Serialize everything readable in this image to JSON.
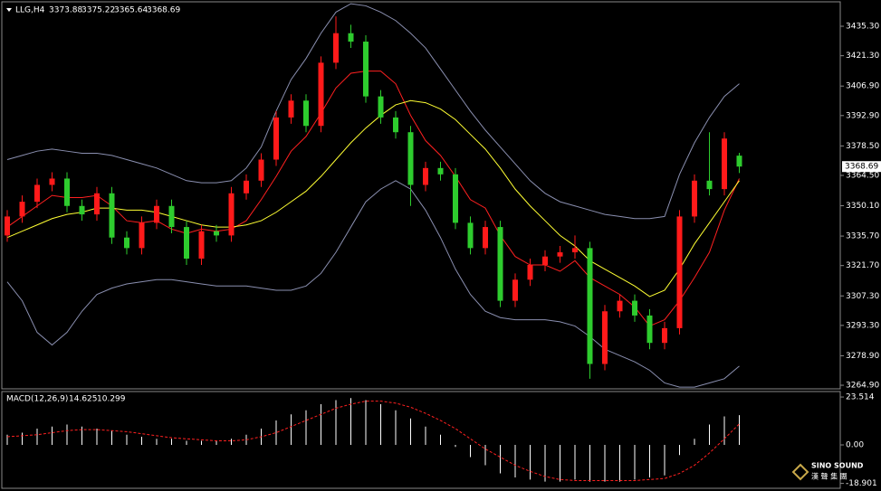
{
  "chart_data": [
    {
      "type": "candlestick",
      "symbol": "LLG,H4",
      "up_color": "#ff1a1a",
      "down_color": "#2ecc2e",
      "open": [
        3336,
        3345,
        3352,
        3360,
        3363,
        3350,
        3346,
        3356,
        3335,
        3330,
        3342,
        3350,
        3340,
        3325,
        3338,
        3336,
        3356,
        3362,
        3372,
        3392,
        3400,
        3388,
        3418,
        3432,
        3428,
        3402,
        3392,
        3385,
        3360,
        3368,
        3365,
        3342,
        3330,
        3340,
        3305,
        3315,
        3322,
        3326,
        3328,
        3330,
        3275,
        3300,
        3305,
        3298,
        3285,
        3292,
        3345,
        3362,
        3358,
        3373.88
      ],
      "high": [
        3348,
        3355,
        3363,
        3366,
        3366,
        3353,
        3359,
        3359,
        3338,
        3345,
        3353,
        3353,
        3343,
        3341,
        3341,
        3359,
        3365,
        3375,
        3395,
        3403,
        3403,
        3421,
        3440,
        3436,
        3431,
        3405,
        3395,
        3388,
        3371,
        3371,
        3368,
        3345,
        3343,
        3343,
        3318,
        3325,
        3329,
        3331,
        3336,
        3333,
        3303,
        3308,
        3308,
        3301,
        3295,
        3348,
        3365,
        3385,
        3385,
        3375.22
      ],
      "low": [
        3333,
        3342,
        3349,
        3357,
        3347,
        3343,
        3343,
        3332,
        3327,
        3327,
        3339,
        3337,
        3322,
        3322,
        3333,
        3333,
        3353,
        3359,
        3369,
        3389,
        3385,
        3385,
        3415,
        3425,
        3399,
        3389,
        3382,
        3350,
        3357,
        3362,
        3339,
        3327,
        3327,
        3302,
        3302,
        3312,
        3319,
        3323,
        3325,
        3268,
        3272,
        3297,
        3295,
        3282,
        3282,
        3289,
        3342,
        3355,
        3355,
        3365.64
      ],
      "close": [
        3345,
        3352,
        3360,
        3363,
        3350,
        3346,
        3356,
        3335,
        3330,
        3342,
        3350,
        3340,
        3325,
        3338,
        3336,
        3356,
        3362,
        3372,
        3392,
        3400,
        3388,
        3418,
        3432,
        3428,
        3402,
        3392,
        3385,
        3360,
        3368,
        3365,
        3342,
        3330,
        3340,
        3305,
        3315,
        3322,
        3326,
        3328,
        3330,
        3275,
        3300,
        3305,
        3298,
        3285,
        3292,
        3345,
        3362,
        3358,
        3382,
        3368.69
      ],
      "lines": [
        {
          "color": "#ff2020",
          "dash": false,
          "values": [
            3340,
            3345,
            3350,
            3355,
            3354,
            3354,
            3355,
            3350,
            3343,
            3342,
            3343,
            3339,
            3337,
            3339,
            3338,
            3339,
            3343,
            3353,
            3364,
            3376,
            3383,
            3394,
            3406,
            3413,
            3414,
            3414,
            3408,
            3393,
            3381,
            3374,
            3364,
            3353,
            3349,
            3336,
            3326,
            3322,
            3322,
            3319,
            3324,
            3316,
            3312,
            3308,
            3302,
            3293,
            3296,
            3305,
            3316,
            3328,
            3348,
            3363
          ]
        },
        {
          "color": "#ffff33",
          "dash": false,
          "values": [
            3335,
            3338,
            3341,
            3344,
            3346,
            3347,
            3349,
            3349,
            3348,
            3348,
            3347,
            3345,
            3343,
            3341,
            3340,
            3340,
            3341,
            3343,
            3347,
            3352,
            3357,
            3364,
            3372,
            3380,
            3387,
            3393,
            3398,
            3400,
            3399,
            3396,
            3391,
            3384,
            3377,
            3368,
            3358,
            3350,
            3343,
            3336,
            3331,
            3324,
            3320,
            3316,
            3312,
            3307,
            3310,
            3320,
            3332,
            3342,
            3352,
            3362
          ]
        },
        {
          "color": "#8a8fb0",
          "dash": false,
          "values": [
            3372,
            3374,
            3376,
            3377,
            3376,
            3375,
            3375,
            3374,
            3372,
            3370,
            3368,
            3365,
            3362,
            3361,
            3361,
            3362,
            3368,
            3378,
            3395,
            3410,
            3420,
            3432,
            3442,
            3446,
            3445,
            3442,
            3438,
            3432,
            3425,
            3415,
            3405,
            3395,
            3386,
            3378,
            3370,
            3362,
            3356,
            3352,
            3350,
            3348,
            3346,
            3345,
            3344,
            3344,
            3345,
            3365,
            3380,
            3392,
            3402,
            3408
          ]
        },
        {
          "color": "#8a8fb0",
          "dash": false,
          "values": [
            3314,
            3305,
            3290,
            3284,
            3290,
            3300,
            3308,
            3311,
            3313,
            3314,
            3315,
            3315,
            3314,
            3313,
            3312,
            3312,
            3312,
            3311,
            3310,
            3310,
            3312,
            3318,
            3328,
            3340,
            3352,
            3358,
            3362,
            3358,
            3348,
            3335,
            3320,
            3308,
            3300,
            3297,
            3296,
            3296,
            3296,
            3295,
            3293,
            3288,
            3282,
            3279,
            3276,
            3272,
            3266,
            3264,
            3264,
            3266,
            3268,
            3274
          ]
        }
      ],
      "ylim": [
        3263.2,
        3446.9
      ],
      "yticks": [
        {
          "value": 3435.3,
          "label": "3435.30"
        },
        {
          "value": 3421.3,
          "label": "3421.30"
        },
        {
          "value": 3406.9,
          "label": "3406.90"
        },
        {
          "value": 3392.9,
          "label": "3392.90"
        },
        {
          "value": 3378.5,
          "label": "3378.50"
        },
        {
          "value": 3364.5,
          "label": "3364.50"
        },
        {
          "value": 3350.1,
          "label": "3350.10"
        },
        {
          "value": 3335.7,
          "label": "3335.70"
        },
        {
          "value": 3321.7,
          "label": "3321.70"
        },
        {
          "value": 3307.3,
          "label": "3307.30"
        },
        {
          "value": 3293.3,
          "label": "3293.30"
        },
        {
          "value": 3278.9,
          "label": "3278.90"
        },
        {
          "value": 3264.9,
          "label": "3264.90"
        }
      ]
    },
    {
      "type": "macd",
      "title": "MACD(12,26,9)",
      "histogram": {
        "color": "#ffffff",
        "values": [
          5,
          6,
          8,
          9,
          10,
          9,
          8,
          7,
          5,
          4,
          3,
          3,
          2,
          2,
          2,
          3,
          5,
          8,
          12,
          15,
          17,
          20,
          22,
          23,
          22,
          20,
          17,
          13,
          9,
          5,
          -1,
          -6,
          -10,
          -14,
          -16,
          -17,
          -18,
          -18,
          -17,
          -18,
          -18,
          -18,
          -17,
          -16,
          -15,
          -5,
          3,
          10,
          14,
          14.625
        ]
      },
      "signal": {
        "color": "#ff2020",
        "values": [
          4,
          4.5,
          5,
          6,
          7,
          7.5,
          7.5,
          7,
          6.5,
          5.5,
          4.5,
          3.5,
          3,
          2.5,
          2,
          2,
          2.5,
          4,
          6,
          9,
          12,
          15,
          18,
          20,
          21.5,
          21.5,
          20.5,
          18.5,
          15.5,
          12,
          8,
          3,
          -2,
          -6,
          -10,
          -13,
          -15.5,
          -17,
          -17.5,
          -17.5,
          -17.5,
          -17.5,
          -17.5,
          -17,
          -16.5,
          -14,
          -10,
          -4,
          3,
          10.299
        ]
      },
      "ylim": [
        -21.3,
        26.2
      ],
      "yticks": [
        {
          "value": 23.514,
          "label": "23.514"
        },
        {
          "value": 0,
          "label": "0.00"
        },
        {
          "value": -18.901,
          "label": "-18.901"
        }
      ]
    }
  ],
  "logo": {
    "name": "SINO SOUND",
    "subtitle": "漢 聲 集 團"
  }
}
